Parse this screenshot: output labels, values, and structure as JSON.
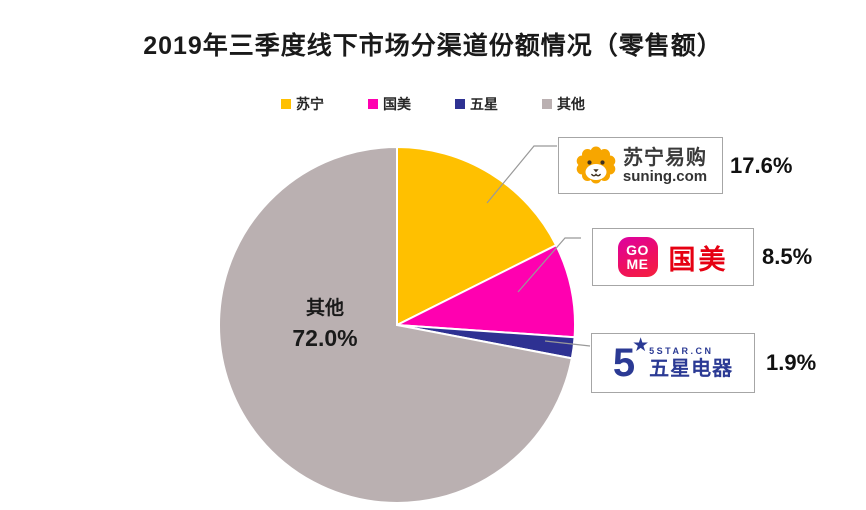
{
  "title": "2019年三季度线下市场分渠道份额情况（零售额）",
  "legend": {
    "items": [
      {
        "label": "苏宁"
      },
      {
        "label": "国美"
      },
      {
        "label": "五星"
      },
      {
        "label": "其他"
      }
    ]
  },
  "chart_data": {
    "type": "pie",
    "title": "2019年三季度线下市场分渠道份额情况（零售额）",
    "labels": [
      "苏宁",
      "国美",
      "五星",
      "其他"
    ],
    "ids": [
      "suning",
      "gome",
      "wuxing",
      "other"
    ],
    "values": [
      17.6,
      8.5,
      1.9,
      72.0
    ],
    "colors": [
      "#FFC000",
      "#FF00B0",
      "#2E3192",
      "#BAB0B1"
    ],
    "start_angle_deg": -90,
    "direction": "clockwise",
    "legend_position": "top",
    "inside_label": {
      "label": "其他",
      "value_text": "72.0%"
    },
    "callout_labels": [
      "17.6%",
      "8.5%",
      "1.9%"
    ]
  },
  "inner_label": {
    "name": "其他",
    "value": "72.0%"
  },
  "callouts": [
    {
      "name": "苏宁易购",
      "subtitle": "suning.com",
      "percent": "17.6%"
    },
    {
      "icon_line1": "GO",
      "icon_line2": "ME",
      "name": "国美",
      "percent": "8.5%"
    },
    {
      "number": "5",
      "star": "★",
      "top_text": "5STAR.CN",
      "name": "五星电器",
      "percent": "1.9%"
    }
  ],
  "colors": {
    "suning_orange": "#F7A600",
    "gome_red": "#E60012",
    "gome_gradient_start": "#DC00A4",
    "gome_gradient_end": "#F5203C",
    "fivestar_blue": "#2B3A94",
    "leader_line": "#999999",
    "box_border": "#A6A6A6"
  }
}
